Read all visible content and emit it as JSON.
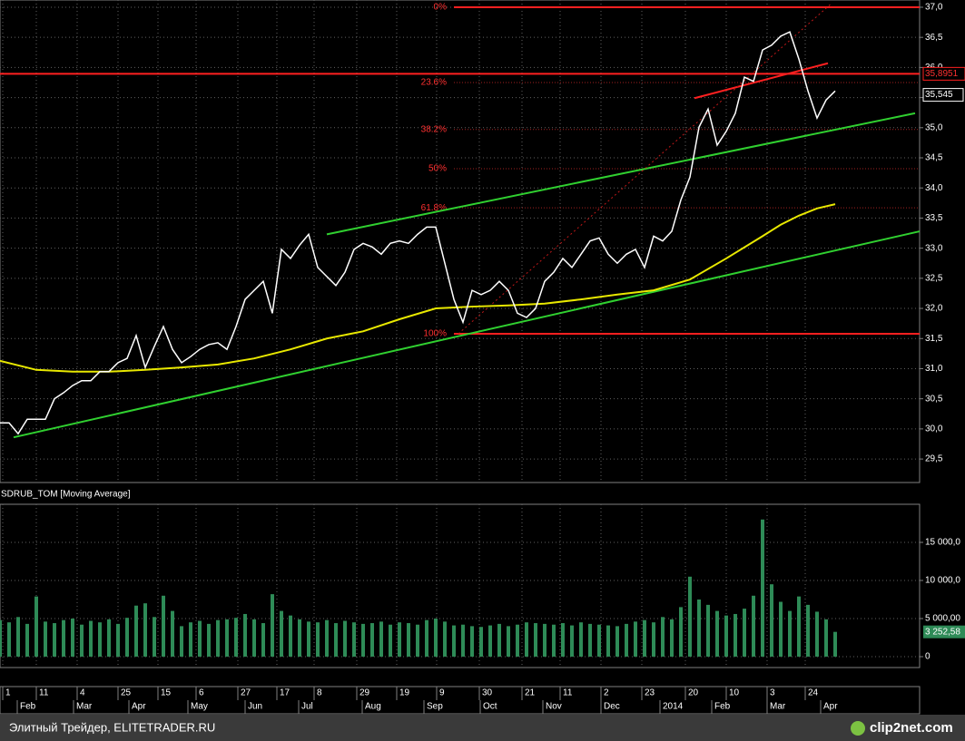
{
  "chart_data": [
    {
      "type": "line",
      "title": "SDRUB_TOM [Moving Average]",
      "x": [
        0,
        1,
        2,
        3,
        4,
        5,
        6,
        7,
        8,
        9,
        10,
        11,
        12,
        13,
        14,
        15,
        16,
        17,
        18,
        19,
        20,
        21,
        22,
        23,
        24,
        25,
        26,
        27,
        28,
        29,
        30,
        31,
        32,
        33,
        34,
        35,
        36,
        37,
        38,
        39,
        40,
        41,
        42,
        43,
        44,
        45,
        46,
        47,
        48,
        49,
        50,
        51,
        52,
        53,
        54,
        55,
        56,
        57,
        58,
        59,
        60,
        61,
        62,
        63,
        64,
        65,
        66,
        67,
        68,
        69,
        70,
        71,
        72,
        73,
        74,
        75,
        76,
        77,
        78,
        79,
        80,
        81,
        82,
        83,
        84,
        85,
        86,
        87,
        88,
        89,
        90,
        91,
        92
      ],
      "series": [
        {
          "color": "#ffffff",
          "values": [
            30.1,
            30.1,
            29.92,
            30.16,
            30.16,
            30.16,
            30.5,
            30.6,
            30.72,
            30.8,
            30.8,
            30.95,
            30.95,
            31.1,
            31.17,
            31.55,
            31.02,
            31.37,
            31.7,
            31.32,
            31.1,
            31.2,
            31.32,
            31.4,
            31.43,
            31.32,
            31.7,
            32.15,
            32.3,
            32.45,
            31.92,
            32.98,
            32.83,
            33.05,
            33.23,
            32.68,
            32.53,
            32.38,
            32.6,
            32.98,
            33.08,
            33.02,
            32.9,
            33.08,
            33.12,
            33.08,
            33.23,
            33.35,
            33.35,
            32.75,
            32.15,
            31.77,
            32.3,
            32.23,
            32.3,
            32.45,
            32.3,
            31.92,
            31.85,
            32.0,
            32.45,
            32.6,
            32.83,
            32.68,
            32.9,
            33.12,
            33.17,
            32.9,
            32.75,
            32.9,
            32.98,
            32.68,
            33.2,
            33.12,
            33.28,
            33.8,
            34.18,
            35.01,
            35.31,
            34.71,
            34.94,
            35.24,
            35.84,
            35.77,
            36.29,
            36.37,
            36.52,
            36.59,
            36.14,
            35.61,
            35.16,
            35.46,
            35.61
          ]
        }
      ],
      "moving_average": {
        "color": "#e8e800",
        "x": [
          0,
          4,
          8,
          12,
          16,
          20,
          24,
          28,
          32,
          36,
          40,
          44,
          48,
          52,
          56,
          60,
          64,
          68,
          72,
          76,
          80,
          84,
          86,
          88,
          90,
          92
        ],
        "values": [
          31.13,
          30.98,
          30.95,
          30.95,
          30.98,
          31.02,
          31.07,
          31.17,
          31.32,
          31.5,
          31.62,
          31.82,
          32.0,
          32.03,
          32.05,
          32.08,
          32.15,
          32.23,
          32.3,
          32.48,
          32.83,
          33.2,
          33.39,
          33.54,
          33.66,
          33.73
        ]
      },
      "trendlines": [
        {
          "color": "#30d030",
          "x": [
            1.5,
            101.3
          ],
          "values": [
            29.86,
            33.28
          ]
        },
        {
          "color": "#30d030",
          "x": [
            36,
            100.8
          ],
          "values": [
            33.23,
            35.24
          ]
        },
        {
          "color": "#ff2020",
          "x": [
            76.5,
            91.2
          ],
          "values": [
            35.49,
            36.07
          ]
        },
        {
          "color": "#c01818",
          "dash": true,
          "x": [
            50.5,
            91.5
          ],
          "values": [
            31.58,
            37.05
          ]
        }
      ],
      "fib_x": [
        50,
        101.3
      ],
      "fib_levels": [
        {
          "label": "0%",
          "value": 37.0
        },
        {
          "label": "23.6%",
          "value": 35.75
        },
        {
          "label": "38.2%",
          "value": 34.97
        },
        {
          "label": "50%",
          "value": 34.32
        },
        {
          "label": "61.8%",
          "value": 33.67
        },
        {
          "label": "100%",
          "value": 31.58
        }
      ],
      "level": {
        "value": 35.8951,
        "label": "35,8951"
      },
      "current_price": {
        "value": 35.545,
        "label": "35,545"
      },
      "xlim": [
        0,
        101.3
      ],
      "ylim": [
        29.11,
        37.12
      ],
      "yticks": [
        {
          "value": 37.0,
          "label": "37,0"
        },
        {
          "value": 36.5,
          "label": "36,5"
        },
        {
          "value": 36.0,
          "label": "36,0"
        },
        {
          "value": 35.5,
          "label": "35,5"
        },
        {
          "value": 35.0,
          "label": "35,0"
        },
        {
          "value": 34.5,
          "label": "34,5"
        },
        {
          "value": 34.0,
          "label": "34,0"
        },
        {
          "value": 33.5,
          "label": "33,5"
        },
        {
          "value": 33.0,
          "label": "33,0"
        },
        {
          "value": 32.5,
          "label": "32,5"
        },
        {
          "value": 32.0,
          "label": "32,0"
        },
        {
          "value": 31.5,
          "label": "31,5"
        },
        {
          "value": 31.0,
          "label": "31,0"
        },
        {
          "value": 30.5,
          "label": "30,5"
        },
        {
          "value": 30.0,
          "label": "30,0"
        },
        {
          "value": 29.5,
          "label": "29,5"
        }
      ],
      "grid": true
    },
    {
      "type": "bar",
      "color": "#2e8b57",
      "values": [
        4800,
        4500,
        5200,
        4300,
        7900,
        4600,
        4400,
        4800,
        5000,
        4200,
        4700,
        4500,
        4900,
        4300,
        5100,
        6700,
        7000,
        5200,
        8000,
        6000,
        4000,
        4500,
        4700,
        4300,
        4800,
        4900,
        5100,
        5600,
        4900,
        4400,
        8200,
        6000,
        5400,
        4900,
        4600,
        4500,
        4800,
        4400,
        4700,
        4500,
        4300,
        4400,
        4600,
        4200,
        4500,
        4400,
        4200,
        4800,
        5000,
        4600,
        4100,
        4200,
        4000,
        3900,
        4100,
        4300,
        4000,
        4200,
        4500,
        4400,
        4300,
        4200,
        4400,
        4100,
        4500,
        4300,
        4200,
        4100,
        4000,
        4300,
        4600,
        4800,
        4500,
        5200,
        4900,
        6500,
        10500,
        7500,
        6800,
        6000,
        5400,
        5600,
        6300,
        8000,
        18000,
        9500,
        7200,
        6000,
        7900,
        6800,
        5900,
        4900,
        3252.58
      ],
      "current_volume": {
        "value": 3252.58,
        "label": "3 252,58"
      },
      "xlim": [
        0,
        101.3
      ],
      "ylim": [
        -1429,
        20000
      ],
      "yticks": [
        {
          "value": 15000,
          "label": "15 000,0"
        },
        {
          "value": 10000,
          "label": "10 000,0"
        },
        {
          "value": 5000,
          "label": "5 000,00"
        },
        0
      ],
      "xticks": [
        {
          "value": 0.3,
          "label": "1"
        },
        {
          "value": 4.0,
          "label": "11"
        },
        {
          "value": 8.5,
          "label": "4"
        },
        {
          "value": 13.0,
          "label": "25"
        },
        {
          "value": 17.4,
          "label": "15"
        },
        {
          "value": 21.6,
          "label": "6"
        },
        {
          "value": 26.2,
          "label": "27"
        },
        {
          "value": 30.5,
          "label": "17"
        },
        {
          "value": 34.6,
          "label": "8"
        },
        {
          "value": 39.3,
          "label": "29"
        },
        {
          "value": 43.7,
          "label": "19"
        },
        {
          "value": 48.1,
          "label": "9"
        },
        {
          "value": 52.8,
          "label": "30"
        },
        {
          "value": 57.5,
          "label": "21"
        },
        {
          "value": 61.7,
          "label": "11"
        },
        {
          "value": 66.2,
          "label": "2"
        },
        {
          "value": 70.7,
          "label": "23"
        },
        {
          "value": 75.5,
          "label": "20"
        },
        {
          "value": 80.0,
          "label": "10"
        },
        {
          "value": 84.5,
          "label": "3"
        },
        {
          "value": 88.7,
          "label": "24"
        }
      ],
      "month_ticks": [
        {
          "value": 2.2,
          "label": "Feb"
        },
        {
          "value": 8.4,
          "label": "Mar"
        },
        {
          "value": 14.5,
          "label": "Apr"
        },
        {
          "value": 21.0,
          "label": "May"
        },
        {
          "value": 27.3,
          "label": "Jun"
        },
        {
          "value": 33.2,
          "label": "Jul"
        },
        {
          "value": 40.2,
          "label": "Aug"
        },
        {
          "value": 47.0,
          "label": "Sep"
        },
        {
          "value": 53.2,
          "label": "Oct"
        },
        {
          "value": 60.1,
          "label": "Nov"
        },
        {
          "value": 66.5,
          "label": "Dec"
        },
        {
          "value": 73.0,
          "label": "2014"
        },
        {
          "value": 78.7,
          "label": "Feb"
        },
        {
          "value": 84.8,
          "label": "Mar"
        },
        {
          "value": 90.7,
          "label": "Apr"
        }
      ]
    }
  ],
  "footer": {
    "source": "Элитный Трейдер, ELITETRADER.RU",
    "logo": "clip2net.com"
  }
}
